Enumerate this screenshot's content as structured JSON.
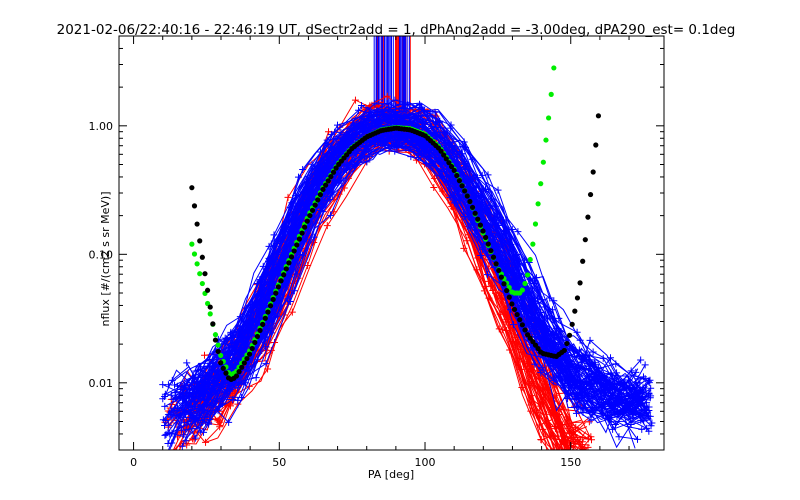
{
  "chart_data": {
    "type": "scatter",
    "title": "2021-02-06/22:40:16 - 22:46:19 UT, dSectr2add = 1, dPhAng2add = -3.00deg, dPA290_est=   0.1deg",
    "xlabel": "PA [deg]",
    "ylabel": "nflux [#/(cm2 s sr MeV)]",
    "xlim": [
      -5,
      182
    ],
    "ylim": [
      0.003,
      5.0
    ],
    "yscale": "log",
    "grid": false,
    "legend": "none",
    "x_ticks": [
      {
        "value": 0,
        "label": "0"
      },
      {
        "value": 50,
        "label": "50"
      },
      {
        "value": 100,
        "label": "100"
      },
      {
        "value": 150,
        "label": "150"
      }
    ],
    "y_ticks": [
      {
        "value": 0.01,
        "label": "0.01"
      },
      {
        "value": 0.1,
        "label": "0.10"
      },
      {
        "value": 1,
        "label": "1.00"
      }
    ],
    "colors": {
      "series_a": "#ff0000",
      "series_b": "#0000ff",
      "fit_green": "#00ee00",
      "fit_black": "#000000",
      "axes": "#000000"
    },
    "series": [
      {
        "color": "#ff0000",
        "marker": "+",
        "style": "lines+markers",
        "x": [
          10,
          20,
          30,
          40,
          50,
          60,
          70,
          80,
          85,
          90,
          95,
          100,
          110,
          120,
          130,
          140,
          150
        ],
        "y": [
          0.0045,
          0.006,
          0.009,
          0.018,
          0.06,
          0.22,
          0.55,
          0.95,
          1.05,
          1.0,
          0.95,
          0.85,
          0.42,
          0.14,
          0.04,
          0.009,
          0.003
        ]
      },
      {
        "color": "#0000ff",
        "marker": "+",
        "style": "lines+markers",
        "x": [
          10,
          20,
          30,
          40,
          50,
          60,
          70,
          80,
          85,
          90,
          95,
          100,
          110,
          120,
          130,
          140,
          150,
          160,
          170
        ],
        "y": [
          0.0055,
          0.0075,
          0.011,
          0.022,
          0.075,
          0.26,
          0.6,
          0.92,
          1.0,
          0.98,
          0.95,
          0.88,
          0.5,
          0.2,
          0.075,
          0.025,
          0.012,
          0.009,
          0.007
        ]
      },
      {
        "color": "#00ee00",
        "marker": "circle",
        "style": "markers",
        "x": [
          20,
          25,
          30,
          33,
          35,
          40,
          45,
          50,
          55,
          60,
          65,
          70,
          75,
          80,
          85,
          90,
          95,
          100,
          105,
          110,
          115,
          120,
          125,
          130,
          133,
          135,
          137,
          140,
          143,
          145
        ],
        "y": [
          0.12,
          0.045,
          0.016,
          0.0115,
          0.012,
          0.018,
          0.032,
          0.06,
          0.11,
          0.2,
          0.33,
          0.5,
          0.68,
          0.82,
          0.93,
          0.97,
          0.95,
          0.86,
          0.68,
          0.46,
          0.27,
          0.145,
          0.078,
          0.05,
          0.05,
          0.065,
          0.12,
          0.4,
          1.5,
          4.3
        ]
      },
      {
        "color": "#000000",
        "marker": "circle",
        "style": "markers",
        "x": [
          20,
          22,
          25,
          28,
          30,
          33,
          35,
          40,
          45,
          50,
          55,
          60,
          65,
          70,
          75,
          80,
          85,
          90,
          95,
          100,
          105,
          110,
          115,
          120,
          125,
          130,
          135,
          140,
          145,
          148,
          150,
          153,
          155,
          158,
          160
        ],
        "y": [
          0.33,
          0.16,
          0.06,
          0.022,
          0.014,
          0.0105,
          0.011,
          0.017,
          0.031,
          0.058,
          0.105,
          0.19,
          0.32,
          0.49,
          0.67,
          0.82,
          0.92,
          0.96,
          0.93,
          0.84,
          0.66,
          0.45,
          0.27,
          0.15,
          0.078,
          0.04,
          0.024,
          0.017,
          0.016,
          0.018,
          0.025,
          0.055,
          0.13,
          0.5,
          1.6
        ]
      }
    ]
  }
}
